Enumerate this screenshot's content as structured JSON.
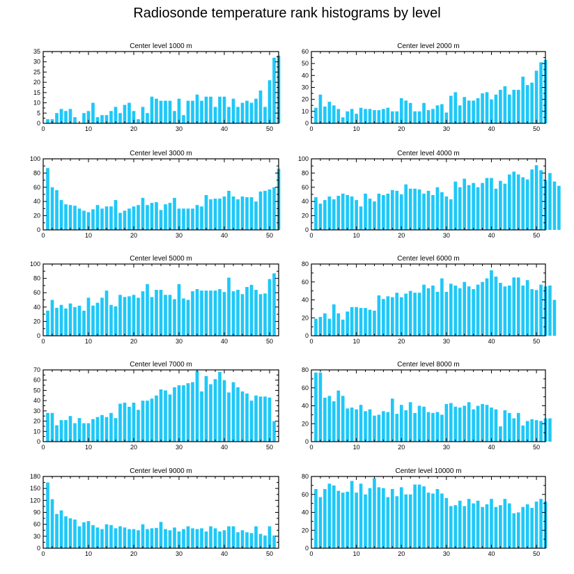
{
  "title": "Radiosonde temperature rank histograms by level",
  "colors": {
    "bar": "#1ec8f8",
    "axis": "#000000",
    "background": "#ffffff"
  },
  "chart_data": [
    {
      "type": "bar",
      "title": "Center level 1000 m",
      "xlim": [
        0,
        52
      ],
      "ylim": [
        0,
        35
      ],
      "xticks": [
        0,
        10,
        20,
        30,
        40,
        50
      ],
      "yticks": [
        0,
        5,
        10,
        15,
        20,
        25,
        30,
        35
      ],
      "values": [
        2,
        2,
        5,
        7,
        6,
        7,
        3,
        0,
        5,
        6,
        10,
        3,
        4,
        4,
        6,
        8,
        5,
        9,
        10,
        6,
        2,
        8,
        5,
        13,
        12,
        11,
        11,
        11,
        6,
        12,
        4,
        11,
        11,
        14,
        11,
        13,
        13,
        8,
        13,
        13,
        8,
        12,
        8,
        10,
        11,
        10,
        12,
        16,
        8,
        21,
        32,
        33
      ]
    },
    {
      "type": "bar",
      "title": "Center level 2000 m",
      "xlim": [
        0,
        52
      ],
      "ylim": [
        0,
        60
      ],
      "xticks": [
        0,
        10,
        20,
        30,
        40,
        50
      ],
      "yticks": [
        0,
        10,
        20,
        30,
        40,
        50,
        60
      ],
      "values": [
        13,
        24,
        14,
        18,
        15,
        12,
        5,
        10,
        12,
        8,
        13,
        12,
        12,
        11,
        11,
        12,
        13,
        10,
        10,
        21,
        19,
        17,
        10,
        10,
        17,
        11,
        12,
        15,
        16,
        9,
        23,
        26,
        15,
        22,
        19,
        19,
        21,
        25,
        26,
        20,
        24,
        28,
        31,
        24,
        28,
        28,
        39,
        32,
        34,
        44,
        51,
        53
      ]
    },
    {
      "type": "bar",
      "title": "Center level 3000 m",
      "xlim": [
        0,
        52
      ],
      "ylim": [
        0,
        100
      ],
      "xticks": [
        0,
        10,
        20,
        30,
        40,
        50
      ],
      "yticks": [
        0,
        20,
        40,
        60,
        80,
        100
      ],
      "values": [
        87,
        60,
        56,
        42,
        36,
        35,
        34,
        30,
        27,
        25,
        29,
        35,
        30,
        33,
        33,
        42,
        24,
        27,
        30,
        33,
        35,
        45,
        35,
        38,
        39,
        28,
        36,
        38,
        45,
        30,
        30,
        30,
        30,
        35,
        33,
        49,
        43,
        44,
        44,
        47,
        55,
        47,
        43,
        47,
        46,
        46,
        40,
        54,
        55,
        57,
        60,
        86
      ]
    },
    {
      "type": "bar",
      "title": "Center level 4000 m",
      "xlim": [
        0,
        52
      ],
      "ylim": [
        0,
        100
      ],
      "xticks": [
        0,
        10,
        20,
        30,
        40,
        50
      ],
      "yticks": [
        0,
        20,
        40,
        60,
        80,
        100
      ],
      "values": [
        46,
        37,
        42,
        47,
        43,
        48,
        51,
        49,
        47,
        42,
        33,
        51,
        44,
        40,
        51,
        49,
        51,
        56,
        55,
        50,
        64,
        58,
        58,
        57,
        51,
        55,
        49,
        60,
        53,
        47,
        43,
        68,
        60,
        72,
        63,
        66,
        60,
        66,
        73,
        73,
        58,
        69,
        65,
        78,
        82,
        78,
        74,
        71,
        85,
        91,
        84,
        70,
        80,
        68,
        62
      ]
    },
    {
      "type": "bar",
      "title": "Center level 5000 m",
      "xlim": [
        0,
        52
      ],
      "ylim": [
        0,
        100
      ],
      "xticks": [
        0,
        10,
        20,
        30,
        40,
        50
      ],
      "yticks": [
        0,
        20,
        40,
        60,
        80,
        100
      ],
      "values": [
        35,
        50,
        39,
        43,
        38,
        45,
        40,
        42,
        35,
        53,
        42,
        46,
        53,
        63,
        43,
        41,
        57,
        54,
        55,
        57,
        53,
        62,
        72,
        54,
        64,
        64,
        57,
        57,
        51,
        72,
        52,
        50,
        62,
        65,
        63,
        63,
        63,
        63,
        65,
        61,
        81,
        62,
        64,
        58,
        68,
        71,
        64,
        58,
        59,
        79,
        87
      ]
    },
    {
      "type": "bar",
      "title": "Center level 6000 m",
      "xlim": [
        0,
        52
      ],
      "ylim": [
        0,
        80
      ],
      "xticks": [
        0,
        10,
        20,
        30,
        40,
        50
      ],
      "yticks": [
        0,
        20,
        40,
        60,
        80
      ],
      "values": [
        19,
        21,
        25,
        19,
        35,
        25,
        18,
        27,
        32,
        32,
        31,
        31,
        29,
        28,
        45,
        41,
        44,
        43,
        48,
        43,
        47,
        50,
        48,
        48,
        57,
        53,
        56,
        49,
        64,
        49,
        58,
        56,
        53,
        60,
        55,
        52,
        57,
        60,
        64,
        73,
        66,
        59,
        55,
        56,
        65,
        65,
        56,
        62,
        52,
        51,
        57,
        55,
        56,
        40
      ]
    },
    {
      "type": "bar",
      "title": "Center level 7000 m",
      "xlim": [
        0,
        52
      ],
      "ylim": [
        0,
        70
      ],
      "xticks": [
        0,
        10,
        20,
        30,
        40,
        50
      ],
      "yticks": [
        0,
        10,
        20,
        30,
        40,
        50,
        60,
        70
      ],
      "values": [
        28,
        28,
        16,
        21,
        21,
        25,
        18,
        23,
        18,
        18,
        22,
        24,
        26,
        24,
        28,
        23,
        37,
        38,
        34,
        38,
        31,
        40,
        40,
        42,
        45,
        51,
        50,
        46,
        53,
        55,
        55,
        57,
        58,
        69,
        49,
        64,
        56,
        61,
        68,
        60,
        48,
        58,
        53,
        49,
        47,
        40,
        45,
        44,
        44,
        43,
        20
      ]
    },
    {
      "type": "bar",
      "title": "Center level 8000 m",
      "xlim": [
        0,
        52
      ],
      "ylim": [
        0,
        80
      ],
      "xticks": [
        0,
        10,
        20,
        30,
        40,
        50
      ],
      "yticks": [
        0,
        20,
        40,
        60,
        80
      ],
      "values": [
        77,
        77,
        49,
        51,
        45,
        57,
        51,
        37,
        38,
        36,
        41,
        34,
        36,
        29,
        30,
        34,
        33,
        48,
        31,
        41,
        35,
        44,
        32,
        40,
        39,
        33,
        32,
        33,
        30,
        42,
        43,
        39,
        38,
        40,
        44,
        36,
        40,
        42,
        41,
        38,
        36,
        17,
        35,
        32,
        26,
        32,
        18,
        23,
        25,
        24,
        23,
        26,
        26
      ]
    },
    {
      "type": "bar",
      "title": "Center level 9000 m",
      "xlim": [
        0,
        52
      ],
      "ylim": [
        0,
        180
      ],
      "xticks": [
        0,
        10,
        20,
        30,
        40,
        50
      ],
      "yticks": [
        0,
        30,
        60,
        90,
        120,
        150,
        180
      ],
      "values": [
        165,
        123,
        86,
        95,
        80,
        75,
        72,
        55,
        65,
        68,
        58,
        52,
        48,
        60,
        58,
        50,
        55,
        52,
        48,
        48,
        45,
        60,
        48,
        50,
        51,
        66,
        48,
        45,
        52,
        42,
        48,
        55,
        50,
        48,
        50,
        42,
        55,
        50,
        42,
        45,
        55,
        55,
        40,
        45,
        40,
        38,
        55,
        36,
        32,
        55,
        32
      ]
    },
    {
      "type": "bar",
      "title": "Center level 10000 m",
      "xlim": [
        0,
        52
      ],
      "ylim": [
        0,
        80
      ],
      "xticks": [
        0,
        10,
        20,
        30,
        40,
        50
      ],
      "yticks": [
        0,
        20,
        40,
        60,
        80
      ],
      "values": [
        66,
        57,
        66,
        72,
        70,
        64,
        62,
        63,
        75,
        62,
        72,
        60,
        67,
        78,
        68,
        67,
        57,
        66,
        58,
        68,
        60,
        60,
        71,
        71,
        69,
        62,
        61,
        66,
        61,
        56,
        47,
        48,
        53,
        47,
        55,
        50,
        53,
        46,
        49,
        55,
        46,
        48,
        55,
        50,
        39,
        40,
        46,
        49,
        45,
        52,
        55,
        52
      ]
    }
  ]
}
